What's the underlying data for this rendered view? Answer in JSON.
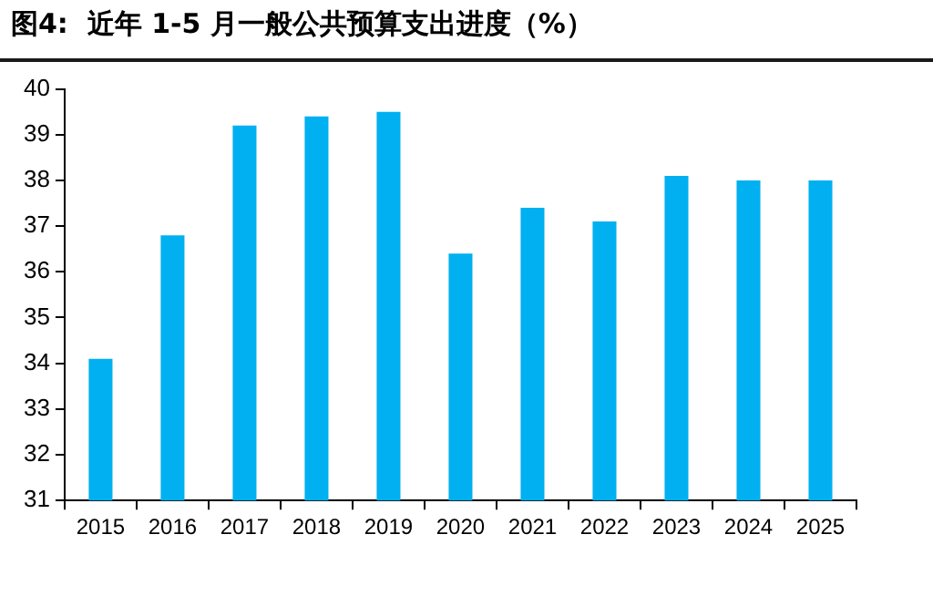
{
  "chart_data": {
    "type": "bar",
    "title": "图4:  近年 1-5 月一般公共预算支出进度（%）",
    "categories": [
      "2015",
      "2016",
      "2017",
      "2018",
      "2019",
      "2020",
      "2021",
      "2022",
      "2023",
      "2024",
      "2025"
    ],
    "values": [
      34.1,
      36.8,
      39.2,
      39.4,
      39.5,
      36.4,
      37.4,
      37.1,
      38.1,
      38.0,
      38.0
    ],
    "color": "#00b0f0",
    "ylim": [
      31,
      40
    ],
    "yticks": [
      31,
      32,
      33,
      34,
      35,
      36,
      37,
      38,
      39,
      40
    ],
    "grid": false,
    "legend": false
  }
}
